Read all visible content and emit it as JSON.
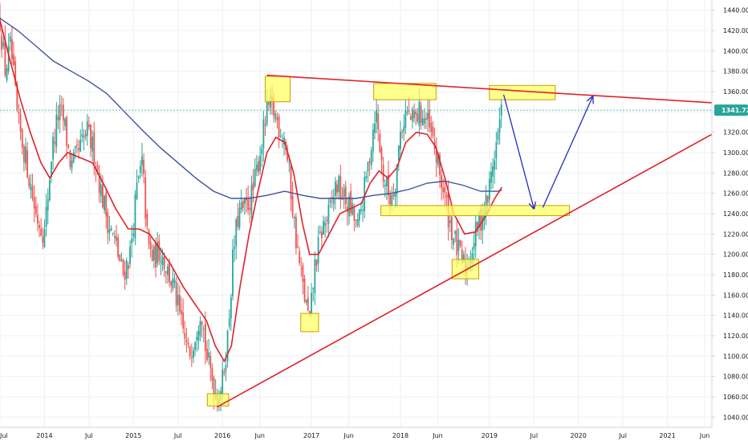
{
  "colors": {
    "background": "#ffffff",
    "grid": "#eef0f3",
    "up_candle": "#26a69a",
    "down_candle": "#ef5350",
    "ema_fast": "#e0222a",
    "ma_slow": "#3f5497",
    "trendline": "#e0222a",
    "highlight_fill": "#ffff66",
    "highlight_stroke": "#c8a000",
    "projection_arrow": "#1f2fc0",
    "price_badge": "#26a69a",
    "last_price_line": "#26a69a",
    "axis_text": "#131722"
  },
  "chart_data": {
    "type": "candlestick",
    "title": "",
    "timeframe_unit": "week",
    "price_axis": {
      "range": [
        1030,
        1450
      ],
      "ticks": [
        1040,
        1060,
        1080,
        1100,
        1120,
        1140,
        1160,
        1180,
        1200,
        1220,
        1240,
        1260,
        1280,
        1300,
        1320,
        1340,
        1360,
        1380,
        1400,
        1420,
        1440
      ],
      "labels": [
        "1040.00",
        "1060.00",
        "1080.00",
        "1100.00",
        "1120.00",
        "1140.00",
        "1160.00",
        "1180.00",
        "1200.00",
        "1220.00",
        "1240.00",
        "1260.00",
        "1280.00",
        "1300.00",
        "1320.00",
        "1340.00",
        "1360.00",
        "1380.00",
        "1400.00",
        "1420.00",
        "1440.00"
      ]
    },
    "time_axis": {
      "range": [
        2013.5,
        2021.5
      ],
      "ticks": [
        {
          "t": 2013.5,
          "label": "Jul"
        },
        {
          "t": 2014.0,
          "label": "2014"
        },
        {
          "t": 2014.5,
          "label": "Jul"
        },
        {
          "t": 2015.0,
          "label": "2015"
        },
        {
          "t": 2015.5,
          "label": "Jul"
        },
        {
          "t": 2016.0,
          "label": "2016"
        },
        {
          "t": 2016.42,
          "label": "Jun"
        },
        {
          "t": 2017.0,
          "label": "2017"
        },
        {
          "t": 2017.42,
          "label": "Jun"
        },
        {
          "t": 2018.0,
          "label": "2018"
        },
        {
          "t": 2018.42,
          "label": "Jun"
        },
        {
          "t": 2019.0,
          "label": "2019"
        },
        {
          "t": 2019.5,
          "label": "Jul"
        },
        {
          "t": 2020.0,
          "label": "2020"
        },
        {
          "t": 2020.5,
          "label": "Jul"
        },
        {
          "t": 2021.0,
          "label": "2021"
        },
        {
          "t": 2021.42,
          "label": "Jun"
        }
      ]
    },
    "last_price": {
      "value": 1341.72,
      "label": "1341.72"
    },
    "price_path": [
      [
        2013.5,
        1430
      ],
      [
        2013.56,
        1380
      ],
      [
        2013.62,
        1405
      ],
      [
        2013.7,
        1330
      ],
      [
        2013.8,
        1290
      ],
      [
        2013.9,
        1240
      ],
      [
        2014.0,
        1220
      ],
      [
        2014.08,
        1300
      ],
      [
        2014.16,
        1340
      ],
      [
        2014.22,
        1330
      ],
      [
        2014.3,
        1285
      ],
      [
        2014.38,
        1300
      ],
      [
        2014.48,
        1320
      ],
      [
        2014.56,
        1300
      ],
      [
        2014.64,
        1260
      ],
      [
        2014.72,
        1230
      ],
      [
        2014.8,
        1210
      ],
      [
        2014.88,
        1180
      ],
      [
        2014.96,
        1200
      ],
      [
        2015.04,
        1265
      ],
      [
        2015.1,
        1290
      ],
      [
        2015.16,
        1210
      ],
      [
        2015.22,
        1195
      ],
      [
        2015.3,
        1205
      ],
      [
        2015.38,
        1185
      ],
      [
        2015.46,
        1165
      ],
      [
        2015.54,
        1130
      ],
      [
        2015.62,
        1100
      ],
      [
        2015.7,
        1125
      ],
      [
        2015.76,
        1150
      ],
      [
        2015.82,
        1100
      ],
      [
        2015.88,
        1080
      ],
      [
        2015.94,
        1060
      ],
      [
        2016.0,
        1075
      ],
      [
        2016.06,
        1120
      ],
      [
        2016.12,
        1200
      ],
      [
        2016.18,
        1240
      ],
      [
        2016.26,
        1245
      ],
      [
        2016.34,
        1260
      ],
      [
        2016.42,
        1300
      ],
      [
        2016.48,
        1330
      ],
      [
        2016.52,
        1345
      ],
      [
        2016.58,
        1340
      ],
      [
        2016.64,
        1325
      ],
      [
        2016.7,
        1315
      ],
      [
        2016.76,
        1270
      ],
      [
        2016.82,
        1220
      ],
      [
        2016.88,
        1180
      ],
      [
        2016.94,
        1150
      ],
      [
        2016.98,
        1132
      ],
      [
        2017.04,
        1190
      ],
      [
        2017.12,
        1225
      ],
      [
        2017.2,
        1240
      ],
      [
        2017.28,
        1270
      ],
      [
        2017.36,
        1255
      ],
      [
        2017.44,
        1245
      ],
      [
        2017.52,
        1225
      ],
      [
        2017.6,
        1265
      ],
      [
        2017.68,
        1315
      ],
      [
        2017.72,
        1345
      ],
      [
        2017.8,
        1280
      ],
      [
        2017.88,
        1255
      ],
      [
        2017.94,
        1270
      ],
      [
        2018.0,
        1320
      ],
      [
        2018.06,
        1340
      ],
      [
        2018.14,
        1330
      ],
      [
        2018.22,
        1340
      ],
      [
        2018.3,
        1330
      ],
      [
        2018.38,
        1305
      ],
      [
        2018.44,
        1280
      ],
      [
        2018.5,
        1255
      ],
      [
        2018.56,
        1230
      ],
      [
        2018.62,
        1210
      ],
      [
        2018.68,
        1195
      ],
      [
        2018.74,
        1185
      ],
      [
        2018.8,
        1205
      ],
      [
        2018.86,
        1225
      ],
      [
        2018.92,
        1240
      ],
      [
        2018.98,
        1255
      ],
      [
        2019.04,
        1290
      ],
      [
        2019.1,
        1320
      ],
      [
        2019.14,
        1341.72
      ]
    ],
    "ema_fast_line": [
      [
        2013.5,
        1430
      ],
      [
        2013.6,
        1395
      ],
      [
        2013.72,
        1355
      ],
      [
        2013.84,
        1320
      ],
      [
        2013.96,
        1290
      ],
      [
        2014.06,
        1275
      ],
      [
        2014.16,
        1290
      ],
      [
        2014.26,
        1300
      ],
      [
        2014.4,
        1295
      ],
      [
        2014.54,
        1290
      ],
      [
        2014.66,
        1270
      ],
      [
        2014.8,
        1245
      ],
      [
        2014.94,
        1225
      ],
      [
        2015.06,
        1225
      ],
      [
        2015.18,
        1220
      ],
      [
        2015.3,
        1205
      ],
      [
        2015.42,
        1190
      ],
      [
        2015.56,
        1168
      ],
      [
        2015.7,
        1150
      ],
      [
        2015.82,
        1135
      ],
      [
        2015.92,
        1110
      ],
      [
        2016.02,
        1095
      ],
      [
        2016.1,
        1110
      ],
      [
        2016.2,
        1170
      ],
      [
        2016.3,
        1220
      ],
      [
        2016.4,
        1262
      ],
      [
        2016.5,
        1300
      ],
      [
        2016.6,
        1315
      ],
      [
        2016.7,
        1310
      ],
      [
        2016.8,
        1280
      ],
      [
        2016.9,
        1230
      ],
      [
        2016.98,
        1200
      ],
      [
        2017.08,
        1200
      ],
      [
        2017.2,
        1220
      ],
      [
        2017.32,
        1240
      ],
      [
        2017.44,
        1245
      ],
      [
        2017.56,
        1250
      ],
      [
        2017.66,
        1270
      ],
      [
        2017.76,
        1282
      ],
      [
        2017.86,
        1275
      ],
      [
        2017.96,
        1285
      ],
      [
        2018.06,
        1310
      ],
      [
        2018.18,
        1320
      ],
      [
        2018.3,
        1318
      ],
      [
        2018.4,
        1305
      ],
      [
        2018.5,
        1275
      ],
      [
        2018.6,
        1240
      ],
      [
        2018.72,
        1220
      ],
      [
        2018.84,
        1222
      ],
      [
        2018.96,
        1238
      ],
      [
        2019.06,
        1255
      ],
      [
        2019.14,
        1266
      ]
    ],
    "ma_slow_line": [
      [
        2013.5,
        1432
      ],
      [
        2013.7,
        1420
      ],
      [
        2013.9,
        1405
      ],
      [
        2014.1,
        1390
      ],
      [
        2014.3,
        1380
      ],
      [
        2014.5,
        1370
      ],
      [
        2014.7,
        1358
      ],
      [
        2014.9,
        1340
      ],
      [
        2015.1,
        1322
      ],
      [
        2015.3,
        1305
      ],
      [
        2015.5,
        1290
      ],
      [
        2015.7,
        1275
      ],
      [
        2015.9,
        1262
      ],
      [
        2016.1,
        1255
      ],
      [
        2016.3,
        1255
      ],
      [
        2016.5,
        1258
      ],
      [
        2016.7,
        1262
      ],
      [
        2016.9,
        1258
      ],
      [
        2017.1,
        1255
      ],
      [
        2017.3,
        1255
      ],
      [
        2017.5,
        1255
      ],
      [
        2017.7,
        1258
      ],
      [
        2017.9,
        1260
      ],
      [
        2018.1,
        1264
      ],
      [
        2018.3,
        1270
      ],
      [
        2018.5,
        1272
      ],
      [
        2018.7,
        1268
      ],
      [
        2018.9,
        1262
      ],
      [
        2019.1,
        1262
      ],
      [
        2019.14,
        1263
      ]
    ],
    "trendlines": [
      {
        "from": [
          2016.5,
          1376
        ],
        "to": [
          2021.5,
          1349
        ]
      },
      {
        "from": [
          2015.94,
          1050
        ],
        "to": [
          2021.5,
          1318
        ]
      }
    ],
    "highlight_zones": [
      {
        "t": [
          2016.48,
          2016.76
        ],
        "p": [
          1350,
          1375
        ]
      },
      {
        "t": [
          2017.7,
          2018.4
        ],
        "p": [
          1352,
          1368
        ]
      },
      {
        "t": [
          2019.0,
          2019.74
        ],
        "p": [
          1352,
          1366
        ]
      },
      {
        "t": [
          2017.78,
          2019.9
        ],
        "p": [
          1238,
          1248
        ]
      },
      {
        "t": [
          2018.58,
          2018.88
        ],
        "p": [
          1176,
          1195
        ]
      },
      {
        "t": [
          2016.88,
          2017.08
        ],
        "p": [
          1124,
          1142
        ]
      },
      {
        "t": [
          2015.83,
          2016.07
        ],
        "p": [
          1051,
          1063
        ]
      }
    ],
    "projection_path": [
      [
        2019.16,
        1357
      ],
      [
        2019.5,
        1245
      ],
      [
        2019.6,
        1246
      ],
      [
        2020.16,
        1355
      ]
    ],
    "grid": true,
    "legend": "none"
  }
}
